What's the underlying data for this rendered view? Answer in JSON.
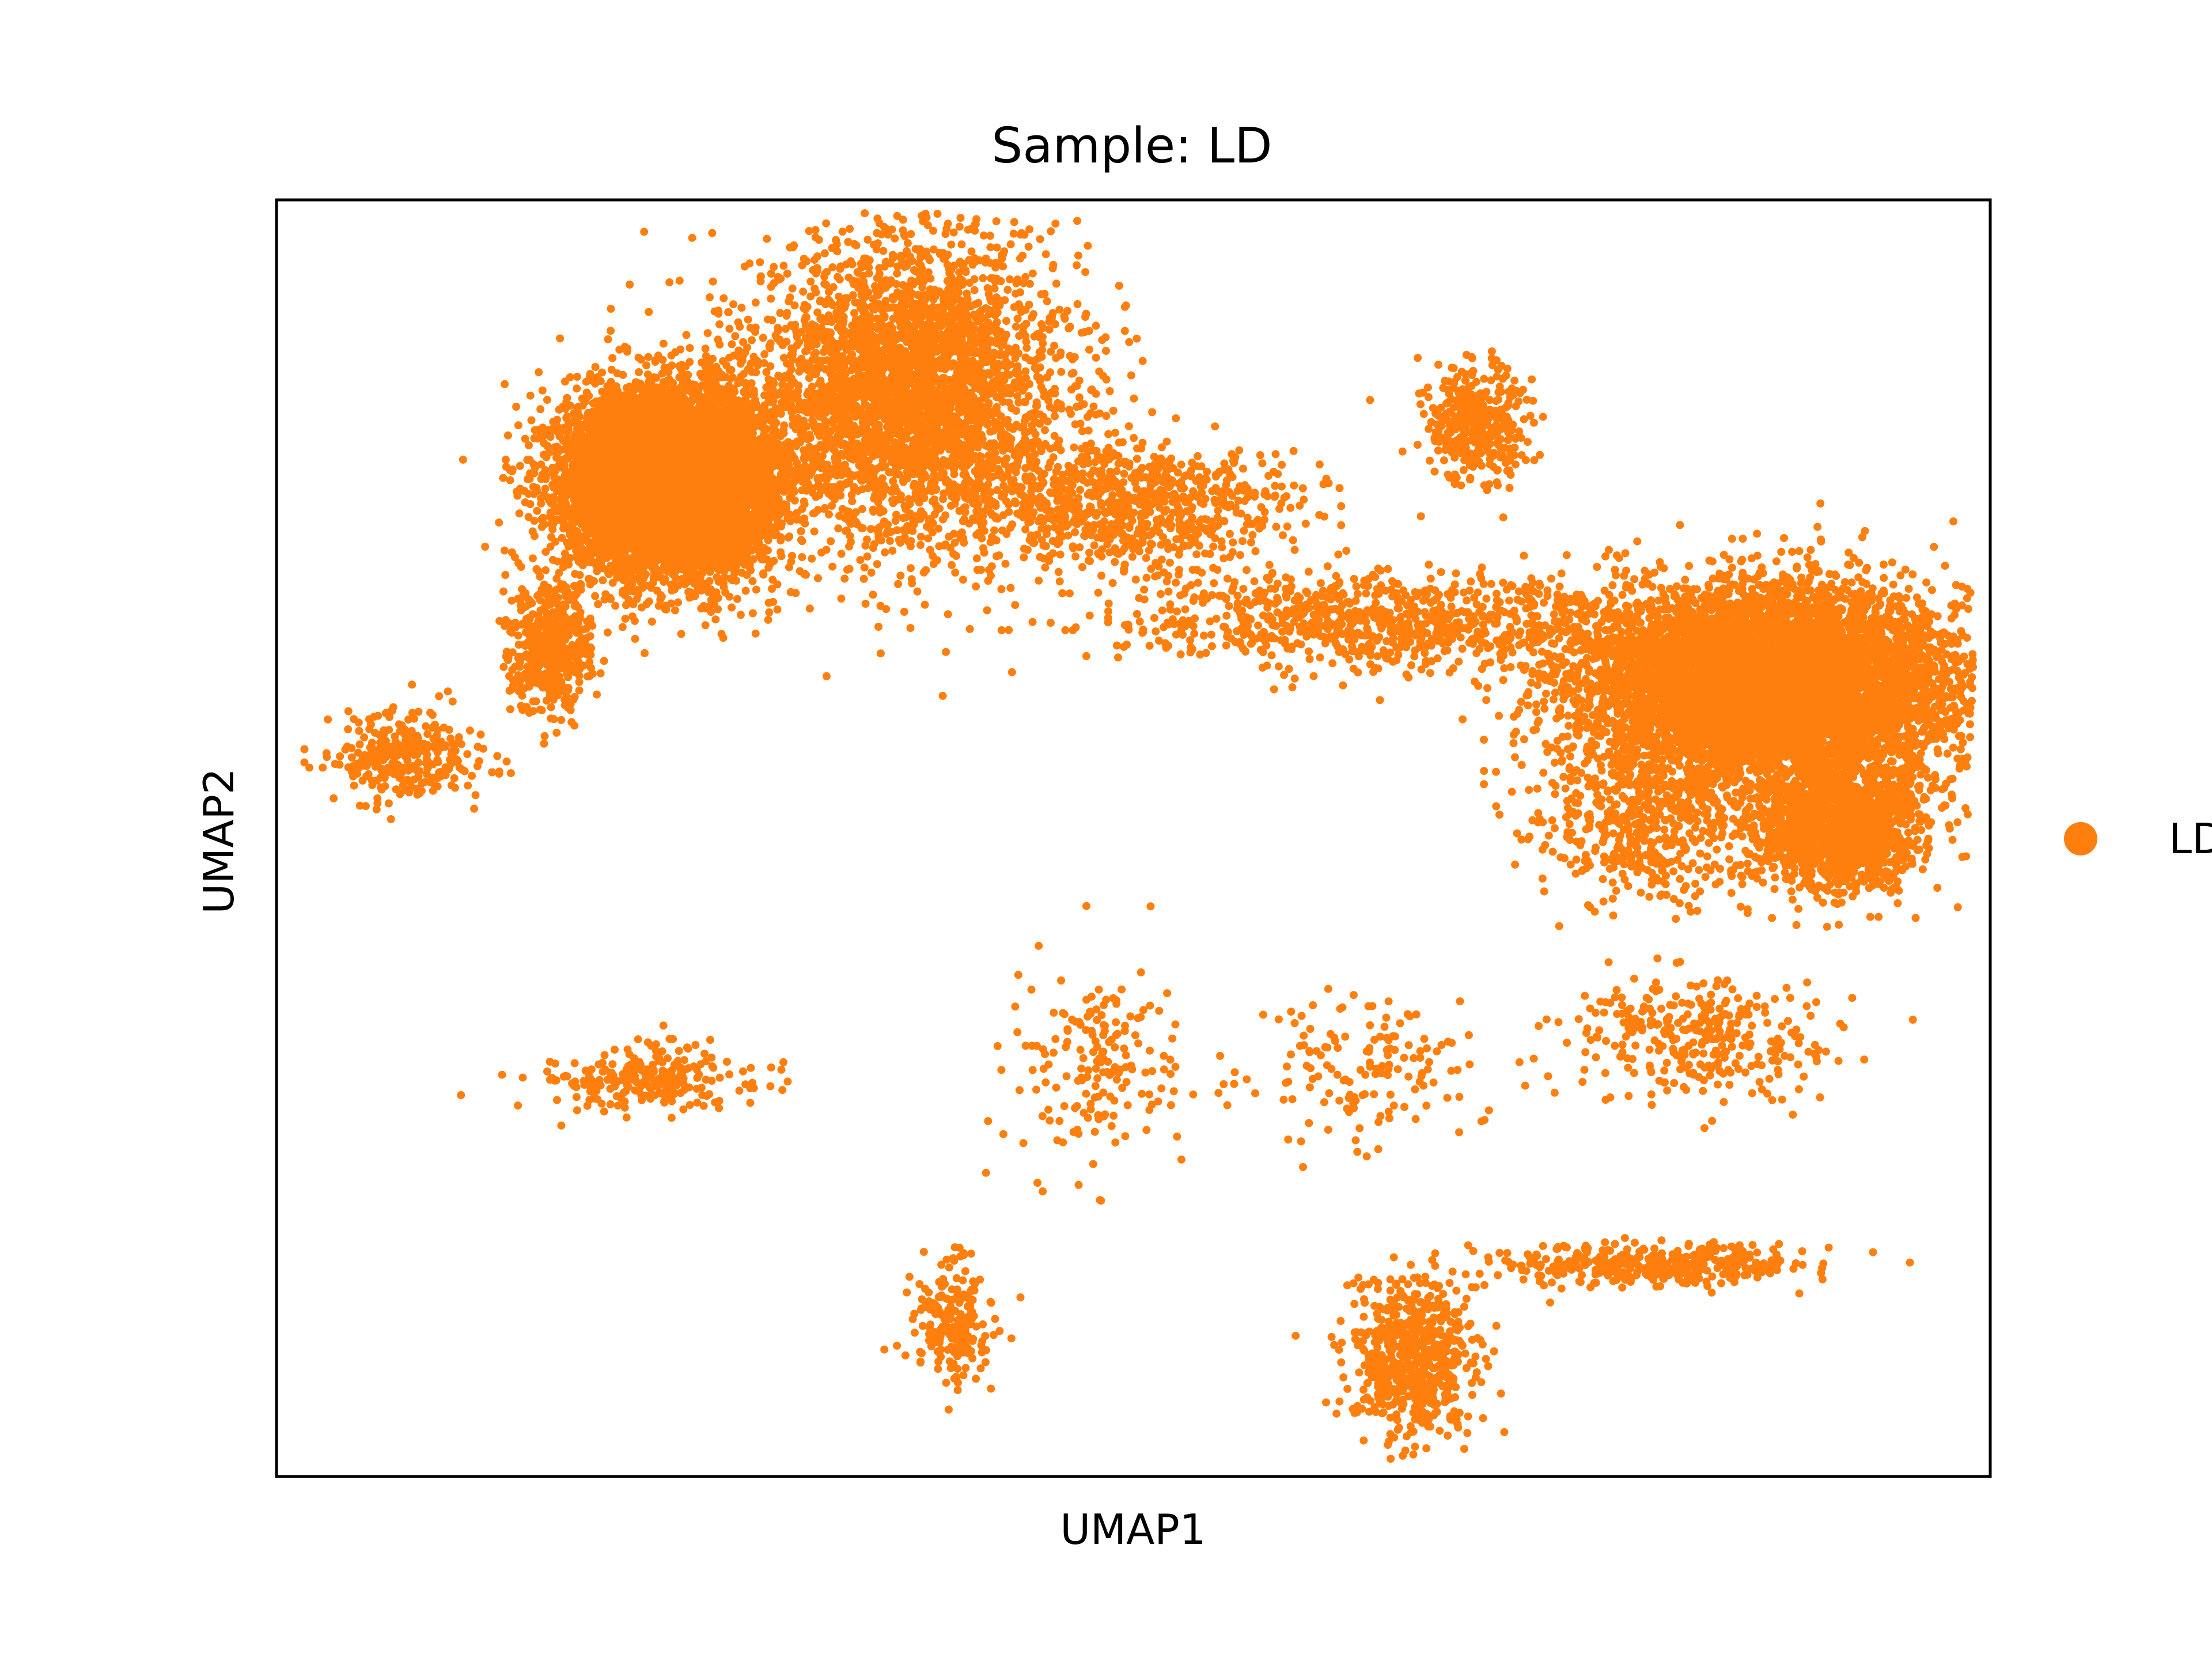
{
  "chart_data": {
    "type": "scatter",
    "title": "Sample: LD",
    "xlabel": "UMAP1",
    "ylabel": "UMAP2",
    "xlim": [
      0,
      100
    ],
    "ylim": [
      0,
      100
    ],
    "grid": false,
    "ticks": false,
    "legend_position": "right",
    "series": [
      {
        "name": "LD",
        "color": "#ff7f0e",
        "clusters": [
          {
            "cx": 23.0,
            "cy": 78.0,
            "sx": 3.0,
            "sy": 3.5,
            "n": 8500
          },
          {
            "cx": 16.0,
            "cy": 65.0,
            "sx": 1.2,
            "sy": 2.5,
            "n": 500
          },
          {
            "cx": 37.0,
            "cy": 85.0,
            "sx": 4.5,
            "sy": 6.0,
            "n": 3500
          },
          {
            "cx": 50.0,
            "cy": 76.0,
            "sx": 5.0,
            "sy": 2.5,
            "n": 800
          },
          {
            "cx": 65.0,
            "cy": 67.0,
            "sx": 8.0,
            "sy": 1.8,
            "n": 900
          },
          {
            "cx": 87.0,
            "cy": 62.0,
            "sx": 5.5,
            "sy": 3.8,
            "n": 7000
          },
          {
            "cx": 91.0,
            "cy": 51.0,
            "sx": 2.6,
            "sy": 2.6,
            "n": 1500
          },
          {
            "cx": 80.0,
            "cy": 51.0,
            "sx": 3.0,
            "sy": 3.0,
            "n": 500
          },
          {
            "cx": 70.0,
            "cy": 82.5,
            "sx": 1.5,
            "sy": 2.5,
            "n": 400
          },
          {
            "cx": 7.5,
            "cy": 56.5,
            "sx": 2.0,
            "sy": 1.8,
            "n": 300
          },
          {
            "cx": 22.0,
            "cy": 31.0,
            "sx": 3.0,
            "sy": 1.2,
            "n": 250
          },
          {
            "cx": 80.0,
            "cy": 16.5,
            "sx": 4.5,
            "sy": 0.8,
            "n": 380
          },
          {
            "cx": 66.5,
            "cy": 9.0,
            "sx": 1.8,
            "sy": 3.0,
            "n": 650
          },
          {
            "cx": 39.5,
            "cy": 11.5,
            "sx": 1.2,
            "sy": 2.5,
            "n": 200
          },
          {
            "cx": 83.0,
            "cy": 34.5,
            "sx": 4.0,
            "sy": 2.5,
            "n": 320
          },
          {
            "cx": 48.0,
            "cy": 32.0,
            "sx": 2.5,
            "sy": 4.0,
            "n": 180
          },
          {
            "cx": 63.5,
            "cy": 32.0,
            "sx": 3.5,
            "sy": 3.0,
            "n": 150
          }
        ]
      }
    ]
  }
}
